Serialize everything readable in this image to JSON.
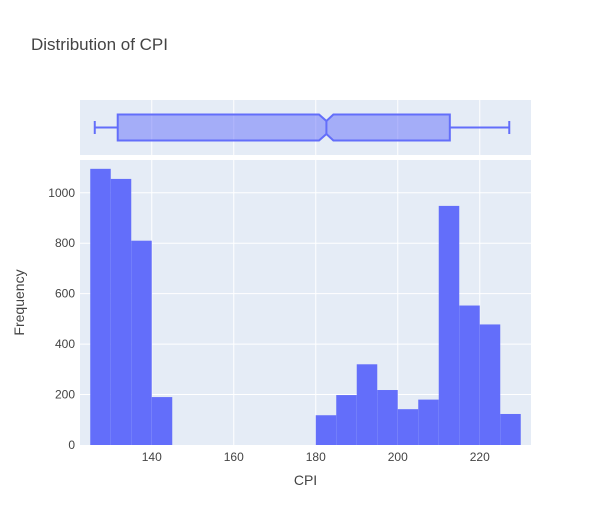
{
  "chart_data": {
    "type": "histogram",
    "title": "Distribution of CPI",
    "xlabel": "CPI",
    "ylabel": "Frequency",
    "xlim": [
      122.5,
      232.5
    ],
    "ylim": [
      0,
      1130
    ],
    "x_ticks": [
      140,
      160,
      180,
      200,
      220
    ],
    "y_ticks": [
      0,
      200,
      400,
      600,
      800,
      1000
    ],
    "bin_width": 5,
    "bins": [
      {
        "start": 125,
        "end": 130,
        "count": 1095
      },
      {
        "start": 130,
        "end": 135,
        "count": 1055
      },
      {
        "start": 135,
        "end": 140,
        "count": 810
      },
      {
        "start": 140,
        "end": 145,
        "count": 190
      },
      {
        "start": 180,
        "end": 185,
        "count": 118
      },
      {
        "start": 185,
        "end": 190,
        "count": 198
      },
      {
        "start": 190,
        "end": 195,
        "count": 320
      },
      {
        "start": 195,
        "end": 200,
        "count": 218
      },
      {
        "start": 200,
        "end": 205,
        "count": 142
      },
      {
        "start": 205,
        "end": 210,
        "count": 180
      },
      {
        "start": 210,
        "end": 215,
        "count": 948
      },
      {
        "start": 215,
        "end": 220,
        "count": 553
      },
      {
        "start": 220,
        "end": 225,
        "count": 478
      },
      {
        "start": 225,
        "end": 230,
        "count": 123
      }
    ],
    "boxplot": {
      "min": 126.1,
      "q1": 131.7,
      "median": 182.6,
      "q3": 212.7,
      "max": 227.2,
      "notch_low": 180.8,
      "notch_high": 184.3
    },
    "colors": {
      "bar": "#636efa",
      "box_fill": "rgba(99,110,250,0.5)",
      "box_line": "#636efa",
      "plot_bg": "#e5ecf6",
      "grid": "#ffffff",
      "text": "#444444"
    },
    "grid": true,
    "legend": "none"
  }
}
